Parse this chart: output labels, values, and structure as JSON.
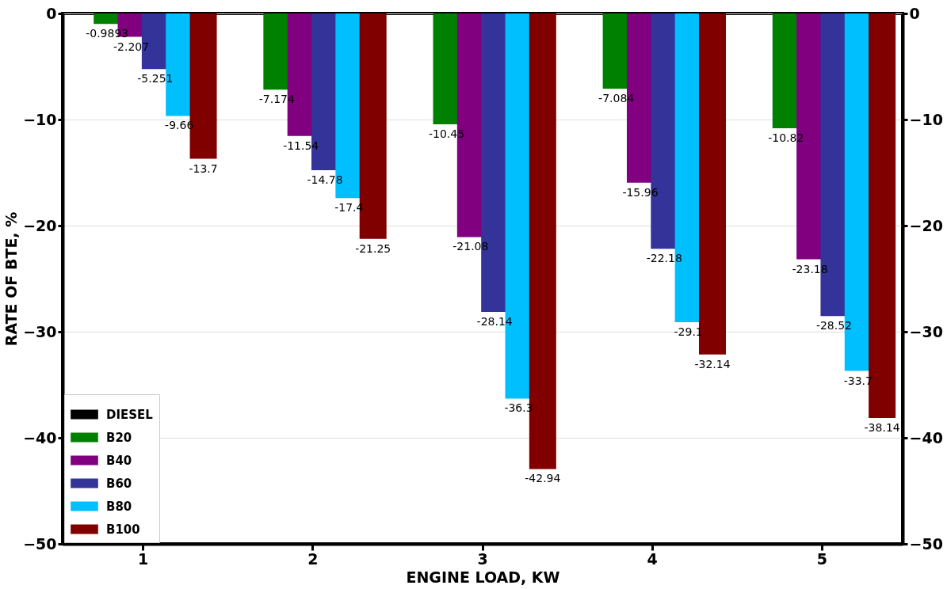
{
  "chart_data": {
    "type": "bar",
    "xlabel": "ENGINE LOAD, KW",
    "ylabel": "RATE OF BTE, %",
    "categories": [
      "1",
      "2",
      "3",
      "4",
      "5"
    ],
    "series": [
      {
        "name": "DIESEL",
        "color": "#000000",
        "values": [
          0,
          0,
          0,
          0,
          0
        ],
        "value_labels": [
          null,
          null,
          null,
          null,
          null
        ]
      },
      {
        "name": "B20",
        "color": "#008000",
        "values": [
          -0.9893,
          -7.174,
          -10.45,
          -7.084,
          -10.82
        ],
        "value_labels": [
          "-0.9893",
          "-7.174",
          "-10.45",
          "-7.084",
          "-10.82"
        ]
      },
      {
        "name": "B40",
        "color": "#800080",
        "values": [
          -2.207,
          -11.54,
          -21.08,
          -15.96,
          -23.18
        ],
        "value_labels": [
          "-2.207",
          "-11.54",
          "-21.08",
          "-15.96",
          "-23.18"
        ]
      },
      {
        "name": "B60",
        "color": "#333399",
        "values": [
          -5.251,
          -14.78,
          -28.14,
          -22.18,
          -28.52
        ],
        "value_labels": [
          "-5.251",
          "-14.78",
          "-28.14",
          "-22.18",
          "-28.52"
        ]
      },
      {
        "name": "B80",
        "color": "#00bfff",
        "values": [
          -9.66,
          -17.4,
          -36.3,
          -29.1,
          -33.7
        ],
        "value_labels": [
          "-9.66",
          "-17.4",
          "-36.3",
          "-29.1",
          "-33.7"
        ]
      },
      {
        "name": "B100",
        "color": "#800000",
        "values": [
          -13.7,
          -21.25,
          -42.94,
          -32.14,
          -38.14
        ],
        "value_labels": [
          "-13.7",
          "-21.25",
          "-42.94",
          "-32.14",
          "-38.14"
        ]
      }
    ],
    "ylim": [
      -50,
      0
    ],
    "yticks": [
      -50,
      -40,
      -30,
      -20,
      -10,
      0
    ],
    "y2lim": [
      -50,
      0
    ],
    "y2ticks": [
      -50,
      -40,
      -30,
      -20,
      -10,
      0
    ],
    "grid": "y",
    "legend": "bottom left"
  }
}
